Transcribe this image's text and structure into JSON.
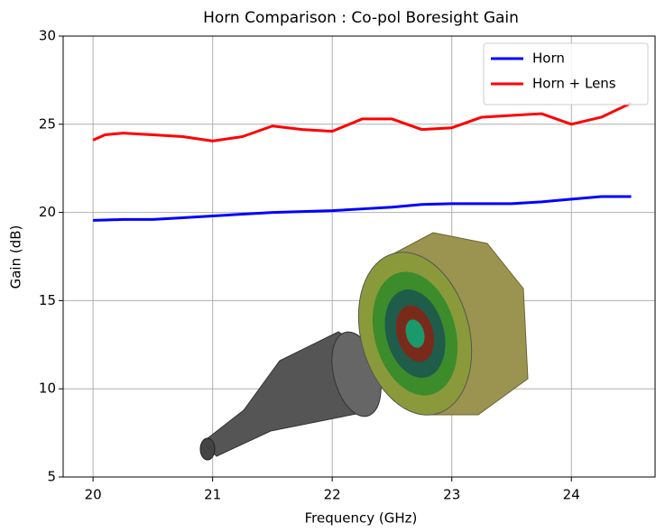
{
  "chart_data": {
    "type": "line",
    "title": "Horn Comparison : Co-pol Boresight Gain",
    "x_label": "Frequency (GHz)",
    "y_label": "Gain (dB)",
    "x": [
      20,
      20.1,
      20.25,
      20.5,
      20.75,
      21,
      21.25,
      21.5,
      21.75,
      22,
      22.25,
      22.5,
      22.75,
      23,
      23.25,
      23.5,
      23.75,
      24,
      24.25,
      24.5
    ],
    "series": [
      {
        "name": "Horn",
        "color": "#0000ff",
        "values": [
          19.55,
          19.57,
          19.6,
          19.6,
          19.7,
          19.8,
          19.9,
          20.0,
          20.05,
          20.1,
          20.2,
          20.3,
          20.45,
          20.5,
          20.5,
          20.5,
          20.6,
          20.75,
          20.9,
          20.9
        ]
      },
      {
        "name": "Horn + Lens",
        "color": "#ff0000",
        "values": [
          24.1,
          24.4,
          24.5,
          24.4,
          24.3,
          24.05,
          24.3,
          24.9,
          24.7,
          24.6,
          25.3,
          25.3,
          24.7,
          24.8,
          25.4,
          25.5,
          25.6,
          25.0,
          25.4,
          26.2
        ]
      }
    ],
    "xlim": [
      19.75,
      24.7
    ],
    "ylim": [
      5,
      30
    ],
    "xticks": [
      20,
      21,
      22,
      23,
      24
    ],
    "yticks": [
      5,
      10,
      15,
      20,
      25,
      30
    ],
    "grid": true,
    "legend": "upper right"
  }
}
